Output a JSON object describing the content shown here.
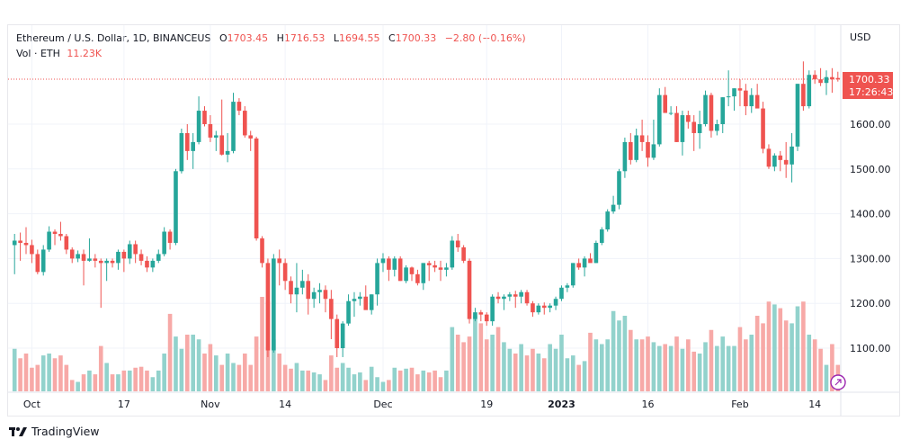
{
  "header": {
    "symbol_title": "Ethereum / U.S. Dollar, 1D, BINANCEUS",
    "open_prefix": "O",
    "open": "1703.45",
    "high_prefix": "H",
    "high": "1716.53",
    "low_prefix": "L",
    "low": "1694.55",
    "close_prefix": "C",
    "close": "1700.33",
    "change": "−2.80 (−0.16%)",
    "volume_label": "Vol · ETH",
    "volume_value": "11.23K"
  },
  "price_axis": {
    "currency": "USD",
    "last_price": "1700.33",
    "countdown": "17:26:43"
  },
  "brand": {
    "name": "TradingView",
    "logo_icon": "tradingview-logo-icon"
  },
  "colors": {
    "up": "#26a69a",
    "down": "#ef5350",
    "up_volume": "#92d2cc",
    "down_volume": "#f7a9a7",
    "grid": "#f0f3fa",
    "text": "#131722",
    "last_price_line": "#ef5350"
  },
  "chart_data": {
    "type": "candlestick",
    "title": "Ethereum / U.S. Dollar, 1D, BINANCEUS",
    "ylabel": "USD",
    "ylim": [
      1020,
      1790
    ],
    "y_ticks": [
      1100,
      1200,
      1300,
      1400,
      1500,
      1600
    ],
    "y_tick_labels": [
      "1100.00",
      "1200.00",
      "1300.00",
      "1400.00",
      "1500.00",
      "1600.00"
    ],
    "x_tick_labels": [
      {
        "label": "Oct",
        "index": 3,
        "bold": false
      },
      {
        "label": "17",
        "index": 19,
        "bold": false
      },
      {
        "label": "Nov",
        "index": 34,
        "bold": false
      },
      {
        "label": "14",
        "index": 47,
        "bold": false
      },
      {
        "label": "Dec",
        "index": 64,
        "bold": false
      },
      {
        "label": "19",
        "index": 82,
        "bold": false
      },
      {
        "label": "2023",
        "index": 95,
        "bold": true
      },
      {
        "label": "16",
        "index": 110,
        "bold": false
      },
      {
        "label": "Feb",
        "index": 126,
        "bold": false
      },
      {
        "label": "14",
        "index": 139,
        "bold": false
      }
    ],
    "grid": true,
    "last_price": 1700.33,
    "volume_max": 100,
    "candles": [
      [
        1330,
        1355,
        1265,
        1340,
        45
      ],
      [
        1340,
        1358,
        1295,
        1335,
        35
      ],
      [
        1335,
        1370,
        1310,
        1330,
        40
      ],
      [
        1330,
        1342,
        1290,
        1310,
        25
      ],
      [
        1310,
        1320,
        1265,
        1270,
        28
      ],
      [
        1270,
        1330,
        1262,
        1320,
        38
      ],
      [
        1320,
        1372,
        1315,
        1360,
        40
      ],
      [
        1360,
        1365,
        1330,
        1355,
        35
      ],
      [
        1355,
        1382,
        1340,
        1350,
        38
      ],
      [
        1350,
        1355,
        1310,
        1320,
        28
      ],
      [
        1320,
        1325,
        1290,
        1300,
        12
      ],
      [
        1300,
        1318,
        1292,
        1310,
        10
      ],
      [
        1310,
        1320,
        1240,
        1295,
        18
      ],
      [
        1295,
        1345,
        1293,
        1300,
        22
      ],
      [
        1300,
        1310,
        1280,
        1295,
        18
      ],
      [
        1295,
        1300,
        1190,
        1290,
        48
      ],
      [
        1290,
        1300,
        1250,
        1295,
        30
      ],
      [
        1295,
        1300,
        1280,
        1290,
        18
      ],
      [
        1290,
        1320,
        1275,
        1315,
        18
      ],
      [
        1315,
        1320,
        1270,
        1300,
        22
      ],
      [
        1300,
        1340,
        1288,
        1332,
        22
      ],
      [
        1332,
        1340,
        1290,
        1310,
        25
      ],
      [
        1310,
        1320,
        1285,
        1295,
        26
      ],
      [
        1295,
        1305,
        1270,
        1280,
        22
      ],
      [
        1280,
        1300,
        1270,
        1295,
        15
      ],
      [
        1295,
        1320,
        1290,
        1310,
        22
      ],
      [
        1310,
        1370,
        1305,
        1360,
        40
      ],
      [
        1360,
        1365,
        1320,
        1335,
        82
      ],
      [
        1335,
        1500,
        1330,
        1495,
        58
      ],
      [
        1495,
        1590,
        1490,
        1580,
        45
      ],
      [
        1580,
        1600,
        1520,
        1540,
        60
      ],
      [
        1540,
        1580,
        1500,
        1560,
        60
      ],
      [
        1560,
        1662,
        1555,
        1630,
        55
      ],
      [
        1630,
        1640,
        1595,
        1600,
        40
      ],
      [
        1600,
        1620,
        1560,
        1570,
        50
      ],
      [
        1570,
        1585,
        1540,
        1575,
        38
      ],
      [
        1575,
        1655,
        1530,
        1532,
        28
      ],
      [
        1532,
        1580,
        1515,
        1540,
        40
      ],
      [
        1540,
        1670,
        1535,
        1650,
        30
      ],
      [
        1650,
        1658,
        1620,
        1630,
        28
      ],
      [
        1630,
        1640,
        1570,
        1575,
        40
      ],
      [
        1575,
        1585,
        1540,
        1568,
        28
      ],
      [
        1568,
        1572,
        1340,
        1345,
        58
      ],
      [
        1345,
        1350,
        1280,
        1290,
        100
      ],
      [
        1290,
        1300,
        1080,
        1095,
        95
      ],
      [
        1095,
        1310,
        1090,
        1300,
        55
      ],
      [
        1300,
        1320,
        1240,
        1290,
        40
      ],
      [
        1290,
        1300,
        1230,
        1250,
        28
      ],
      [
        1250,
        1260,
        1200,
        1220,
        24
      ],
      [
        1220,
        1290,
        1180,
        1235,
        30
      ],
      [
        1235,
        1275,
        1220,
        1250,
        22
      ],
      [
        1250,
        1265,
        1175,
        1210,
        22
      ],
      [
        1210,
        1235,
        1190,
        1225,
        20
      ],
      [
        1225,
        1245,
        1200,
        1230,
        18
      ],
      [
        1230,
        1240,
        1180,
        1210,
        12
      ],
      [
        1210,
        1230,
        1120,
        1165,
        38
      ],
      [
        1165,
        1175,
        1080,
        1100,
        25
      ],
      [
        1100,
        1160,
        1080,
        1155,
        30
      ],
      [
        1155,
        1220,
        1150,
        1205,
        25
      ],
      [
        1205,
        1225,
        1170,
        1210,
        18
      ],
      [
        1210,
        1225,
        1195,
        1215,
        20
      ],
      [
        1215,
        1240,
        1190,
        1185,
        12
      ],
      [
        1185,
        1220,
        1175,
        1220,
        26
      ],
      [
        1220,
        1300,
        1195,
        1290,
        15
      ],
      [
        1290,
        1312,
        1270,
        1300,
        10
      ],
      [
        1300,
        1305,
        1250,
        1275,
        12
      ],
      [
        1275,
        1305,
        1260,
        1300,
        25
      ],
      [
        1300,
        1305,
        1250,
        1250,
        22
      ],
      [
        1250,
        1285,
        1245,
        1280,
        24
      ],
      [
        1280,
        1282,
        1250,
        1265,
        25
      ],
      [
        1265,
        1275,
        1240,
        1245,
        18
      ],
      [
        1245,
        1290,
        1230,
        1290,
        22
      ],
      [
        1290,
        1295,
        1250,
        1285,
        20
      ],
      [
        1285,
        1295,
        1270,
        1280,
        22
      ],
      [
        1280,
        1295,
        1250,
        1275,
        15
      ],
      [
        1275,
        1290,
        1260,
        1280,
        22
      ],
      [
        1280,
        1350,
        1275,
        1340,
        68
      ],
      [
        1340,
        1355,
        1315,
        1325,
        60
      ],
      [
        1325,
        1330,
        1290,
        1295,
        52
      ],
      [
        1295,
        1300,
        1155,
        1165,
        58
      ],
      [
        1165,
        1190,
        1160,
        1180,
        80
      ],
      [
        1180,
        1185,
        1160,
        1175,
        72
      ],
      [
        1175,
        1180,
        1150,
        1160,
        55
      ],
      [
        1160,
        1220,
        1150,
        1215,
        60
      ],
      [
        1215,
        1225,
        1200,
        1210,
        68
      ],
      [
        1210,
        1220,
        1185,
        1215,
        52
      ],
      [
        1215,
        1225,
        1205,
        1220,
        45
      ],
      [
        1220,
        1228,
        1190,
        1215,
        40
      ],
      [
        1215,
        1230,
        1200,
        1225,
        50
      ],
      [
        1225,
        1230,
        1195,
        1200,
        38
      ],
      [
        1200,
        1205,
        1170,
        1180,
        45
      ],
      [
        1180,
        1200,
        1175,
        1195,
        40
      ],
      [
        1195,
        1202,
        1175,
        1190,
        35
      ],
      [
        1190,
        1200,
        1180,
        1195,
        50
      ],
      [
        1195,
        1215,
        1185,
        1210,
        45
      ],
      [
        1210,
        1240,
        1205,
        1235,
        60
      ],
      [
        1235,
        1245,
        1225,
        1240,
        35
      ],
      [
        1240,
        1290,
        1235,
        1290,
        38
      ],
      [
        1290,
        1300,
        1275,
        1280,
        28
      ],
      [
        1280,
        1305,
        1260,
        1300,
        32
      ],
      [
        1300,
        1312,
        1295,
        1290,
        62
      ],
      [
        1290,
        1340,
        1290,
        1335,
        55
      ],
      [
        1335,
        1370,
        1330,
        1365,
        50
      ],
      [
        1365,
        1410,
        1360,
        1405,
        55
      ],
      [
        1405,
        1440,
        1400,
        1420,
        85
      ],
      [
        1420,
        1500,
        1410,
        1495,
        75
      ],
      [
        1495,
        1570,
        1480,
        1560,
        80
      ],
      [
        1560,
        1580,
        1510,
        1520,
        65
      ],
      [
        1520,
        1590,
        1515,
        1575,
        55
      ],
      [
        1575,
        1610,
        1540,
        1560,
        55
      ],
      [
        1560,
        1575,
        1505,
        1525,
        58
      ],
      [
        1525,
        1610,
        1520,
        1555,
        52
      ],
      [
        1555,
        1680,
        1550,
        1665,
        48
      ],
      [
        1665,
        1683,
        1625,
        1625,
        50
      ],
      [
        1625,
        1640,
        1620,
        1625,
        48
      ],
      [
        1625,
        1640,
        1560,
        1560,
        58
      ],
      [
        1560,
        1630,
        1530,
        1620,
        45
      ],
      [
        1620,
        1630,
        1590,
        1605,
        55
      ],
      [
        1605,
        1620,
        1540,
        1580,
        42
      ],
      [
        1580,
        1630,
        1545,
        1600,
        40
      ],
      [
        1600,
        1675,
        1595,
        1665,
        52
      ],
      [
        1665,
        1670,
        1570,
        1585,
        65
      ],
      [
        1585,
        1610,
        1575,
        1600,
        48
      ],
      [
        1600,
        1660,
        1580,
        1660,
        58
      ],
      [
        1660,
        1720,
        1640,
        1662,
        48
      ],
      [
        1662,
        1680,
        1630,
        1680,
        48
      ],
      [
        1680,
        1700,
        1640,
        1675,
        68
      ],
      [
        1675,
        1690,
        1620,
        1640,
        55
      ],
      [
        1640,
        1680,
        1625,
        1665,
        60
      ],
      [
        1665,
        1690,
        1640,
        1635,
        80
      ],
      [
        1635,
        1650,
        1535,
        1545,
        72
      ],
      [
        1545,
        1555,
        1500,
        1505,
        95
      ],
      [
        1505,
        1535,
        1495,
        1530,
        92
      ],
      [
        1530,
        1540,
        1495,
        1520,
        88
      ],
      [
        1520,
        1560,
        1480,
        1510,
        75
      ],
      [
        1510,
        1580,
        1470,
        1550,
        72
      ],
      [
        1550,
        1690,
        1540,
        1690,
        90
      ],
      [
        1690,
        1740,
        1630,
        1640,
        95
      ],
      [
        1640,
        1720,
        1635,
        1710,
        60
      ],
      [
        1710,
        1720,
        1690,
        1700,
        55
      ],
      [
        1700,
        1725,
        1685,
        1692,
        45
      ],
      [
        1692,
        1720,
        1665,
        1705,
        28
      ],
      [
        1705,
        1725,
        1670,
        1700,
        50
      ],
      [
        1703,
        1717,
        1695,
        1700,
        28
      ]
    ]
  }
}
